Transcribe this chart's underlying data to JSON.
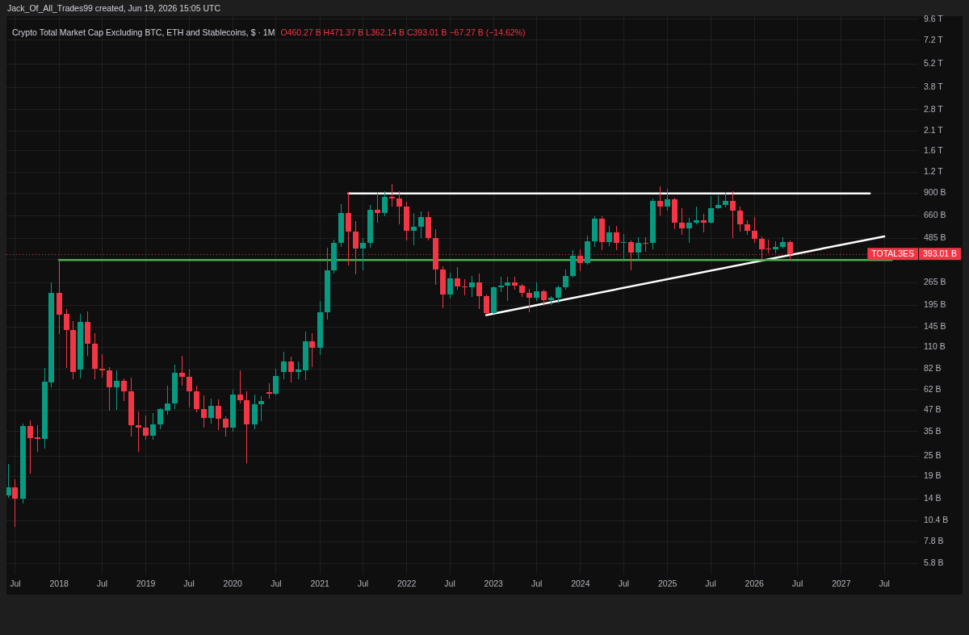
{
  "chart_data": {
    "type": "candlestick",
    "title": "Crypto Total Market Cap Excluding BTC, ETH and Stablecoins, $ · 1M",
    "subtitle": "O460.27 B H471.37 B L362.14 B C393.01 B −67.27 B (−14.62%)",
    "annotations": [
      "Jack_Of_All_Trades99 created, Jun 19, 2026 15:05 UTC",
      {
        "text": "TOTAL3ES",
        "y": 393010000000.0
      }
    ],
    "x": [
      "2017-06",
      "2017-07",
      "2017-08",
      "2017-09",
      "2017-10",
      "2017-11",
      "2017-12",
      "2018-01",
      "2018-02",
      "2018-03",
      "2018-04",
      "2018-05",
      "2018-06",
      "2018-07",
      "2018-08",
      "2018-09",
      "2018-10",
      "2018-11",
      "2018-12",
      "2019-01",
      "2019-02",
      "2019-03",
      "2019-04",
      "2019-05",
      "2019-06",
      "2019-07",
      "2019-08",
      "2019-09",
      "2019-10",
      "2019-11",
      "2019-12",
      "2020-01",
      "2020-02",
      "2020-03",
      "2020-04",
      "2020-05",
      "2020-06",
      "2020-07",
      "2020-08",
      "2020-09",
      "2020-10",
      "2020-11",
      "2020-12",
      "2021-01",
      "2021-02",
      "2021-03",
      "2021-04",
      "2021-05",
      "2021-06",
      "2021-07",
      "2021-08",
      "2021-09",
      "2021-10",
      "2021-11",
      "2021-12",
      "2022-01",
      "2022-02",
      "2022-03",
      "2022-04",
      "2022-05",
      "2022-06",
      "2022-07",
      "2022-08",
      "2022-09",
      "2022-10",
      "2022-11",
      "2022-12",
      "2023-01",
      "2023-02",
      "2023-03",
      "2023-04",
      "2023-05",
      "2023-06",
      "2023-07",
      "2023-08",
      "2023-09",
      "2023-10",
      "2023-11",
      "2023-12",
      "2024-01",
      "2024-02",
      "2024-03",
      "2024-04",
      "2024-05",
      "2024-06",
      "2024-07",
      "2024-08",
      "2024-09",
      "2024-10",
      "2024-11",
      "2024-12",
      "2025-01",
      "2025-02",
      "2025-03",
      "2025-04",
      "2025-05",
      "2025-06",
      "2025-07",
      "2025-08",
      "2025-09",
      "2025-10",
      "2025-11",
      "2025-12",
      "2026-01",
      "2026-02",
      "2026-03",
      "2026-04",
      "2026-05",
      "2026-06"
    ],
    "ohlc": [
      [
        14600000000.0,
        22400000000.0,
        14300000000.0,
        16300000000.0
      ],
      [
        16300000000.0,
        18200000000.0,
        9600000000.0,
        14100000000.0
      ],
      [
        14100000000.0,
        38800000000.0,
        13200000000.0,
        37600000000.0
      ],
      [
        37600000000.0,
        40600000000.0,
        19900000000.0,
        31900000000.0
      ],
      [
        32200000000.0,
        38000000000.0,
        26700000000.0,
        31800000000.0
      ],
      [
        31600000000.0,
        82900000000.0,
        27900000000.0,
        68800000000.0
      ],
      [
        68600000000.0,
        264000000000.0,
        64400000000.0,
        232000000000.0
      ],
      [
        230000000000.0,
        362000000000.0,
        133000000000.0,
        172000000000.0
      ],
      [
        173000000000.0,
        184000000000.0,
        83800000000.0,
        139000000000.0
      ],
      [
        139000000000.0,
        157000000000.0,
        72100000000.0,
        78500000000.0
      ],
      [
        81100000000.0,
        173000000000.0,
        72900000000.0,
        155000000000.0
      ],
      [
        155000000000.0,
        179000000000.0,
        98800000000.0,
        116000000000.0
      ],
      [
        116000000000.0,
        133000000000.0,
        71600000000.0,
        82000000000.0
      ],
      [
        82000000000.0,
        100000000000.0,
        73700000000.0,
        80500000000.0
      ],
      [
        80800000000.0,
        83800000000.0,
        46500000000.0,
        63700000000.0
      ],
      [
        63700000000.0,
        80200000000.0,
        47200000000.0,
        70100000000.0
      ],
      [
        70100000000.0,
        71900000000.0,
        53600000000.0,
        60500000000.0
      ],
      [
        60500000000.0,
        72400000000.0,
        32900000000.0,
        38000000000.0
      ],
      [
        38000000000.0,
        45900000000.0,
        26800000000.0,
        36900000000.0
      ],
      [
        36900000000.0,
        43400000000.0,
        31400000000.0,
        33200000000.0
      ],
      [
        33200000000.0,
        44500000000.0,
        31600000000.0,
        38700000000.0
      ],
      [
        38700000000.0,
        47700000000.0,
        36500000000.0,
        47300000000.0
      ],
      [
        46300000000.0,
        64900000000.0,
        44200000000.0,
        51300000000.0
      ],
      [
        51100000000.0,
        86300000000.0,
        47900000000.0,
        77900000000.0
      ],
      [
        77900000000.0,
        97800000000.0,
        66000000000.0,
        73700000000.0
      ],
      [
        73700000000.0,
        80800000000.0,
        48900000000.0,
        60300000000.0
      ],
      [
        60300000000.0,
        65300000000.0,
        45800000000.0,
        47500000000.0
      ],
      [
        47500000000.0,
        57100000000.0,
        37300000000.0,
        42300000000.0
      ],
      [
        42300000000.0,
        54600000000.0,
        39300000000.0,
        49500000000.0
      ],
      [
        49500000000.0,
        54000000000.0,
        36000000000.0,
        41500000000.0
      ],
      [
        41500000000.0,
        42900000000.0,
        32900000000.0,
        36900000000.0
      ],
      [
        36900000000.0,
        61400000000.0,
        35300000000.0,
        57700000000.0
      ],
      [
        57700000000.0,
        80200000000.0,
        51500000000.0,
        53400000000.0
      ],
      [
        53400000000.0,
        60300000000.0,
        22800000000.0,
        38400000000.0
      ],
      [
        38400000000.0,
        57700000000.0,
        36500000000.0,
        50700000000.0
      ],
      [
        50600000000.0,
        56600000000.0,
        40700000000.0,
        53200000000.0
      ],
      [
        60100000000.0,
        67300000000.0,
        55000000000.0,
        58300000000.0
      ],
      [
        58300000000.0,
        82000000000.0,
        57500000000.0,
        74500000000.0
      ],
      [
        79100000000.0,
        103000000000.0,
        71600000000.0,
        90800000000.0
      ],
      [
        90800000000.0,
        96700000000.0,
        68500000000.0,
        78500000000.0
      ],
      [
        78700000000.0,
        90200000000.0,
        71600000000.0,
        81100000000.0
      ],
      [
        80500000000.0,
        136000000000.0,
        71100000000.0,
        120000000000.0
      ],
      [
        120000000000.0,
        133000000000.0,
        85000000000.0,
        110000000000.0
      ],
      [
        110000000000.0,
        206000000000.0,
        99600000000.0,
        178000000000.0
      ],
      [
        178000000000.0,
        423000000000.0,
        161000000000.0,
        316000000000.0
      ],
      [
        316000000000.0,
        474000000000.0,
        304000000000.0,
        455000000000.0
      ],
      [
        455000000000.0,
        766000000000.0,
        433000000000.0,
        686000000000.0
      ],
      [
        686000000000.0,
        907000000000.0,
        337000000000.0,
        533000000000.0
      ],
      [
        533000000000.0,
        613000000000.0,
        300000000000.0,
        422000000000.0
      ],
      [
        422000000000.0,
        485000000000.0,
        316000000000.0,
        455000000000.0
      ],
      [
        455000000000.0,
        757000000000.0,
        428000000000.0,
        717000000000.0
      ],
      [
        717000000000.0,
        900000000000.0,
        601000000000.0,
        682000000000.0
      ],
      [
        682000000000.0,
        917000000000.0,
        659000000000.0,
        852000000000.0
      ],
      [
        852000000000.0,
        1016000000000.0,
        749000000000.0,
        836000000000.0
      ],
      [
        836000000000.0,
        917000000000.0,
        591000000000.0,
        747000000000.0
      ],
      [
        747000000000.0,
        798000000000.0,
        472000000000.0,
        541000000000.0
      ],
      [
        541000000000.0,
        682000000000.0,
        444000000000.0,
        567000000000.0
      ],
      [
        567000000000.0,
        694000000000.0,
        490000000000.0,
        649000000000.0
      ],
      [
        649000000000.0,
        699000000000.0,
        477000000000.0,
        486000000000.0
      ],
      [
        486000000000.0,
        549000000000.0,
        259000000000.0,
        319000000000.0
      ],
      [
        319000000000.0,
        331000000000.0,
        188000000000.0,
        227000000000.0
      ],
      [
        227000000000.0,
        302000000000.0,
        215000000000.0,
        283000000000.0
      ],
      [
        283000000000.0,
        327000000000.0,
        244000000000.0,
        252000000000.0
      ],
      [
        252000000000.0,
        276000000000.0,
        225000000000.0,
        249000000000.0
      ],
      [
        249000000000.0,
        291000000000.0,
        221000000000.0,
        268000000000.0
      ],
      [
        268000000000.0,
        300000000000.0,
        186000000000.0,
        220000000000.0
      ],
      [
        220000000000.0,
        224000000000.0,
        173000000000.0,
        175000000000.0
      ],
      [
        175000000000.0,
        252000000000.0,
        175000000000.0,
        249000000000.0
      ],
      [
        249000000000.0,
        287000000000.0,
        236000000000.0,
        256000000000.0
      ],
      [
        256000000000.0,
        285000000000.0,
        209000000000.0,
        268000000000.0
      ],
      [
        268000000000.0,
        287000000000.0,
        244000000000.0,
        255000000000.0
      ],
      [
        255000000000.0,
        260000000000.0,
        221000000000.0,
        231000000000.0
      ],
      [
        231000000000.0,
        243000000000.0,
        178000000000.0,
        217000000000.0
      ],
      [
        217000000000.0,
        265000000000.0,
        209000000000.0,
        235000000000.0
      ],
      [
        235000000000.0,
        239000000000.0,
        195000000000.0,
        209000000000.0
      ],
      [
        209000000000.0,
        220000000000.0,
        197000000000.0,
        216000000000.0
      ],
      [
        216000000000.0,
        254000000000.0,
        202000000000.0,
        249000000000.0
      ],
      [
        249000000000.0,
        317000000000.0,
        244000000000.0,
        290000000000.0
      ],
      [
        290000000000.0,
        412000000000.0,
        287000000000.0,
        382000000000.0
      ],
      [
        382000000000.0,
        417000000000.0,
        314000000000.0,
        346000000000.0
      ],
      [
        346000000000.0,
        504000000000.0,
        343000000000.0,
        466000000000.0
      ],
      [
        466000000000.0,
        652000000000.0,
        436000000000.0,
        638000000000.0
      ],
      [
        638000000000.0,
        652000000000.0,
        416000000000.0,
        464000000000.0
      ],
      [
        464000000000.0,
        574000000000.0,
        439000000000.0,
        524000000000.0
      ],
      [
        524000000000.0,
        569000000000.0,
        418000000000.0,
        457000000000.0
      ],
      [
        457000000000.0,
        510000000000.0,
        363000000000.0,
        464000000000.0
      ],
      [
        464000000000.0,
        469000000000.0,
        316000000000.0,
        402000000000.0
      ],
      [
        402000000000.0,
        492000000000.0,
        363000000000.0,
        459000000000.0
      ],
      [
        459000000000.0,
        488000000000.0,
        409000000000.0,
        455000000000.0
      ],
      [
        455000000000.0,
        831000000000.0,
        420000000000.0,
        804000000000.0
      ],
      [
        804000000000.0,
        983000000000.0,
        664000000000.0,
        747000000000.0
      ],
      [
        747000000000.0,
        948000000000.0,
        715000000000.0,
        827000000000.0
      ],
      [
        827000000000.0,
        840000000000.0,
        553000000000.0,
        601000000000.0
      ],
      [
        601000000000.0,
        728000000000.0,
        510000000000.0,
        559000000000.0
      ],
      [
        559000000000.0,
        640000000000.0,
        457000000000.0,
        599000000000.0
      ],
      [
        599000000000.0,
        741000000000.0,
        591000000000.0,
        619000000000.0
      ],
      [
        619000000000.0,
        676000000000.0,
        527000000000.0,
        604000000000.0
      ],
      [
        604000000000.0,
        858000000000.0,
        595000000000.0,
        736000000000.0
      ],
      [
        736000000000.0,
        864000000000.0,
        728000000000.0,
        766000000000.0
      ],
      [
        766000000000.0,
        907000000000.0,
        747000000000.0,
        804000000000.0
      ],
      [
        804000000000.0,
        913000000000.0,
        492000000000.0,
        712000000000.0
      ],
      [
        712000000000.0,
        747000000000.0,
        533000000000.0,
        586000000000.0
      ],
      [
        586000000000.0,
        621000000000.0,
        510000000000.0,
        539000000000.0
      ],
      [
        539000000000.0,
        645000000000.0,
        457000000000.0,
        485000000000.0
      ],
      [
        485000000000.0,
        496000000000.0,
        366000000000.0,
        417000000000.0
      ],
      [
        422000000000.0,
        474000000000.0,
        398000000000.0,
        419000000000.0
      ],
      [
        419000000000.0,
        466000000000.0,
        398000000000.0,
        434000000000.0
      ],
      [
        434000000000.0,
        492000000000.0,
        426000000000.0,
        460000000000.0
      ],
      [
        460270000000.0,
        471370000000.0,
        362140000000.0,
        393010000000.0
      ]
    ],
    "colors": [
      "#089981",
      "#f23645",
      "#089981",
      "#f23645",
      "#f23645",
      "#089981",
      "#089981",
      "#f23645",
      "#f23645",
      "#f23645",
      "#089981",
      "#f23645",
      "#f23645",
      "#f23645",
      "#f23645",
      "#089981",
      "#f23645",
      "#f23645",
      "#f23645",
      "#f23645",
      "#089981",
      "#089981",
      "#089981",
      "#089981",
      "#f23645",
      "#f23645",
      "#f23645",
      "#f23645",
      "#089981",
      "#f23645",
      "#f23645",
      "#089981",
      "#f23645",
      "#f23645",
      "#089981",
      "#089981",
      "#f23645",
      "#089981",
      "#089981",
      "#f23645",
      "#089981",
      "#089981",
      "#f23645",
      "#089981",
      "#089981",
      "#089981",
      "#089981",
      "#f23645",
      "#f23645",
      "#089981",
      "#089981",
      "#f23645",
      "#089981",
      "#f23645",
      "#f23645",
      "#f23645",
      "#089981",
      "#089981",
      "#f23645",
      "#f23645",
      "#f23645",
      "#089981",
      "#f23645",
      "#f23645",
      "#089981",
      "#f23645",
      "#f23645",
      "#089981",
      "#089981",
      "#089981",
      "#f23645",
      "#f23645",
      "#f23645",
      "#089981",
      "#f23645",
      "#089981",
      "#089981",
      "#089981",
      "#089981",
      "#f23645",
      "#089981",
      "#089981",
      "#f23645",
      "#089981",
      "#f23645",
      "#089981",
      "#f23645",
      "#089981",
      "#f23645",
      "#089981",
      "#f23645",
      "#089981",
      "#f23645",
      "#f23645",
      "#089981",
      "#089981",
      "#f23645",
      "#089981",
      "#089981",
      "#089981",
      "#f23645",
      "#f23645",
      "#f23645",
      "#f23645",
      "#f23645",
      "#f23645",
      "#089981",
      "#089981",
      "#f23645"
    ],
    "series": [
      {
        "type": "line",
        "color": "#ffffff",
        "x": [
          "2021-05",
          "2027-05"
        ],
        "values": [
          895000000000.0,
          895000000000.0
        ]
      },
      {
        "type": "line",
        "color": "#4caf50",
        "x": [
          "2018-01",
          "2027-08"
        ],
        "values": [
          362000000000.0,
          362000000000.0
        ]
      },
      {
        "type": "line",
        "color": "#ffffff",
        "x": [
          "2022-12",
          "2027-07"
        ],
        "values": [
          171000000000.0,
          499000000000.0
        ]
      }
    ],
    "ref_lines": [
      {
        "axis": "y",
        "value": 393010000000.0,
        "label": "393.01 B",
        "color": "#f23645",
        "line_style": "dotted"
      }
    ],
    "xlim": [
      "2017-05-25",
      "2027-11-20"
    ],
    "xticks": [
      {
        "value": "2017-07",
        "label": "Jul"
      },
      "2018",
      {
        "value": "2018-07",
        "label": "Jul"
      },
      "2019",
      {
        "value": "2019-07",
        "label": "Jul"
      },
      "2020",
      {
        "value": "2020-07",
        "label": "Jul"
      },
      "2021",
      {
        "value": "2021-07",
        "label": "Jul"
      },
      "2022",
      {
        "value": "2022-07",
        "label": "Jul"
      },
      "2023",
      {
        "value": "2023-07",
        "label": "Jul"
      },
      "2024",
      {
        "value": "2024-07",
        "label": "Jul"
      },
      "2025",
      {
        "value": "2025-07",
        "label": "Jul"
      },
      "2026",
      {
        "value": "2026-07",
        "label": "Jul"
      },
      "2027",
      {
        "value": "2027-07",
        "label": "Jul"
      }
    ],
    "ylim": [
      5000000000.0,
      10000000000000.0
    ],
    "yticks": [
      {
        "value": 5800000000.0,
        "label": "5.8 B"
      },
      {
        "value": 7800000000.0,
        "label": "7.8 B"
      },
      {
        "value": 10400000000.0,
        "label": "10.4 B"
      },
      {
        "value": 14000000000.0,
        "label": "14 B"
      },
      {
        "value": 19000000000.0,
        "label": "19 B"
      },
      {
        "value": 25000000000.0,
        "label": "25 B"
      },
      {
        "value": 35000000000.0,
        "label": "35 B"
      },
      {
        "value": 47000000000.0,
        "label": "47 B"
      },
      {
        "value": 62000000000.0,
        "label": "62 B"
      },
      {
        "value": 82000000000.0,
        "label": "82 B"
      },
      {
        "value": 110000000000.0,
        "label": "110 B"
      },
      {
        "value": 145000000000.0,
        "label": "145 B"
      },
      {
        "value": 195000000000.0,
        "label": "195 B"
      },
      {
        "value": 265000000000.0,
        "label": "265 B"
      },
      {
        "value": 365000000000.0,
        "label": null
      },
      {
        "value": 485000000000.0,
        "label": "485 B"
      },
      {
        "value": 660000000000.0,
        "label": "660 B"
      },
      {
        "value": 900000000000.0,
        "label": "900 B"
      },
      {
        "value": 1200000000000.0,
        "label": "1.2 T"
      },
      {
        "value": 1600000000000.0,
        "label": "1.6 T"
      },
      {
        "value": 2100000000000.0,
        "label": "2.1 T"
      },
      {
        "value": 2800000000000.0,
        "label": "2.8 T"
      },
      {
        "value": 3800000000000.0,
        "label": "3.8 T"
      },
      {
        "value": 5200000000000.0,
        "label": "5.2 T"
      },
      {
        "value": 7200000000000.0,
        "label": "7.2 T"
      },
      {
        "value": 9600000000000.0,
        "label": "9.6 T"
      }
    ],
    "log": true,
    "grid": true
  }
}
